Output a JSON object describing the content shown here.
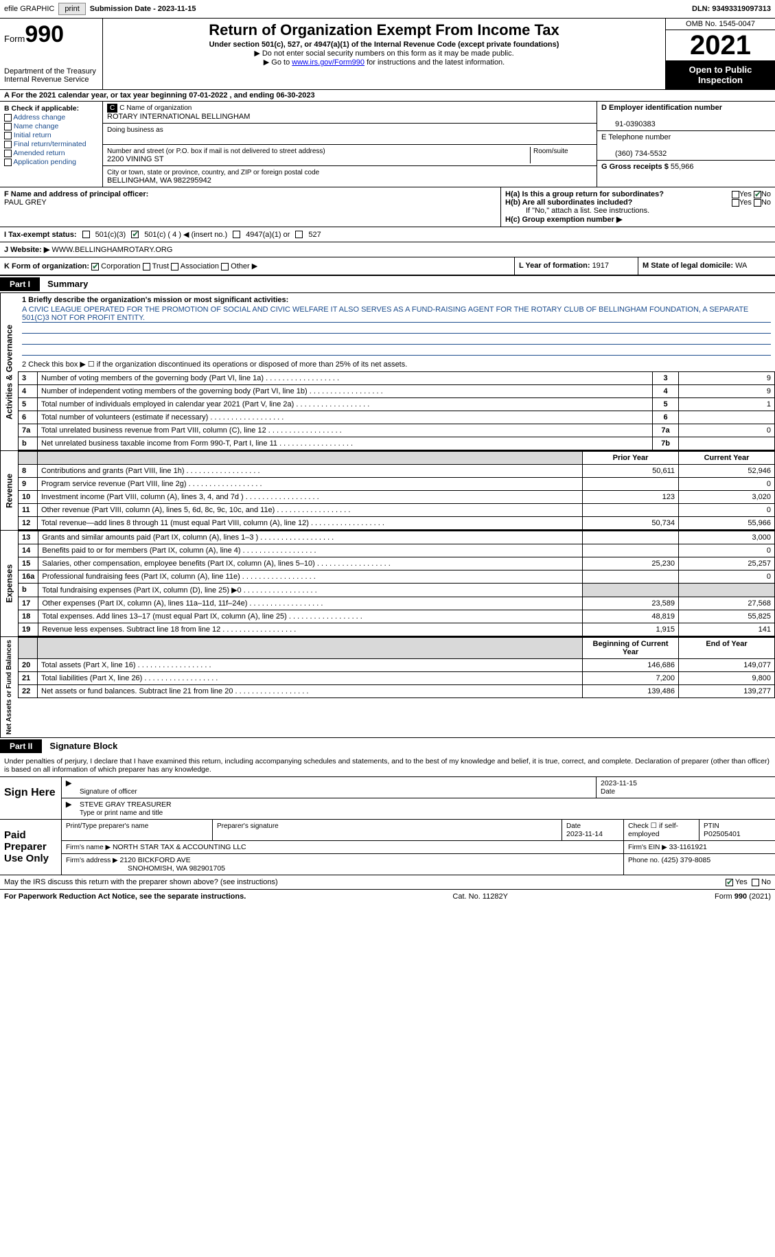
{
  "topbar": {
    "efile": "efile GRAPHIC",
    "print_btn": "print",
    "sub_label": "Submission Date - ",
    "sub_date": "2023-11-15",
    "dln_label": "DLN: ",
    "dln": "93493319097313"
  },
  "header": {
    "form_word": "Form",
    "form_num": "990",
    "dept1": "Department of the Treasury",
    "dept2": "Internal Revenue Service",
    "title": "Return of Organization Exempt From Income Tax",
    "sub": "Under section 501(c), 527, or 4947(a)(1) of the Internal Revenue Code (except private foundations)",
    "note1": "▶ Do not enter social security numbers on this form as it may be made public.",
    "note2_pre": "▶ Go to ",
    "note2_link": "www.irs.gov/Form990",
    "note2_post": " for instructions and the latest information.",
    "omb": "OMB No. 1545-0047",
    "year": "2021",
    "inspect": "Open to Public Inspection"
  },
  "row_a": {
    "text_pre": "A For the 2021 calendar year, or tax year beginning ",
    "begin": "07-01-2022",
    "mid": " , and ending ",
    "end": "06-30-2023"
  },
  "col_b": {
    "header": "B Check if applicable:",
    "opts": [
      "Address change",
      "Name change",
      "Initial return",
      "Final return/terminated",
      "Amended return",
      "Application pending"
    ]
  },
  "col_c": {
    "name_label": "C Name of organization",
    "name": "ROTARY INTERNATIONAL BELLINGHAM",
    "dba_label": "Doing business as",
    "addr_label": "Number and street (or P.O. box if mail is not delivered to street address)",
    "room_label": "Room/suite",
    "addr": "2200 VINING ST",
    "city_label": "City or town, state or province, country, and ZIP or foreign postal code",
    "city": "BELLINGHAM, WA  982295942"
  },
  "col_d": {
    "ein_label": "D Employer identification number",
    "ein": "91-0390383",
    "tel_label": "E Telephone number",
    "tel": "(360) 734-5532",
    "gross_label": "G Gross receipts $ ",
    "gross": "55,966"
  },
  "row_f": {
    "label": "F  Name and address of principal officer:",
    "name": "PAUL GREY"
  },
  "row_h": {
    "ha": "H(a)  Is this a group return for subordinates?",
    "hb": "H(b)  Are all subordinates included?",
    "hb_note": "If \"No,\" attach a list. See instructions.",
    "hc": "H(c)  Group exemption number ▶",
    "yes": "Yes",
    "no": "No"
  },
  "row_i": {
    "label": "I   Tax-exempt status:",
    "o1": "501(c)(3)",
    "o2_pre": "501(c) ( ",
    "o2_num": "4",
    "o2_post": " ) ◀ (insert no.)",
    "o3": "4947(a)(1) or",
    "o4": "527"
  },
  "row_j": {
    "label": "J   Website: ▶",
    "url": "WWW.BELLINGHAMROTARY.ORG"
  },
  "row_k": {
    "label": "K Form of organization:",
    "o1": "Corporation",
    "o2": "Trust",
    "o3": "Association",
    "o4": "Other ▶",
    "l_label": "L Year of formation: ",
    "l_val": "1917",
    "m_label": "M State of legal domicile: ",
    "m_val": "WA"
  },
  "part1": {
    "hdr": "Part I",
    "title": "Summary",
    "line1_label": "1   Briefly describe the organization's mission or most significant activities:",
    "mission": "A CIVIC LEAGUE OPERATED FOR THE PROMOTION OF SOCIAL AND CIVIC WELFARE IT ALSO SERVES AS A FUND-RAISING AGENT FOR THE ROTARY CLUB OF BELLINGHAM FOUNDATION, A SEPARATE 501(C)3 NOT FOR PROFIT ENTITY.",
    "line2": "2   Check this box ▶ ☐  if the organization discontinued its operations or disposed of more than 25% of its net assets.",
    "side_ag": "Activities & Governance",
    "side_rev": "Revenue",
    "side_exp": "Expenses",
    "side_net": "Net Assets or Fund Balances",
    "prior_hdr": "Prior Year",
    "curr_hdr": "Current Year",
    "boy_hdr": "Beginning of Current Year",
    "eoy_hdr": "End of Year",
    "rows_ag": [
      {
        "n": "3",
        "t": "Number of voting members of the governing body (Part VI, line 1a)",
        "b": "3",
        "v": "9"
      },
      {
        "n": "4",
        "t": "Number of independent voting members of the governing body (Part VI, line 1b)",
        "b": "4",
        "v": "9"
      },
      {
        "n": "5",
        "t": "Total number of individuals employed in calendar year 2021 (Part V, line 2a)",
        "b": "5",
        "v": "1"
      },
      {
        "n": "6",
        "t": "Total number of volunteers (estimate if necessary)",
        "b": "6",
        "v": ""
      },
      {
        "n": "7a",
        "t": "Total unrelated business revenue from Part VIII, column (C), line 12",
        "b": "7a",
        "v": "0"
      },
      {
        "n": "b",
        "t": "Net unrelated business taxable income from Form 990-T, Part I, line 11",
        "b": "7b",
        "v": ""
      }
    ],
    "rows_rev": [
      {
        "n": "8",
        "t": "Contributions and grants (Part VIII, line 1h)",
        "p": "50,611",
        "c": "52,946"
      },
      {
        "n": "9",
        "t": "Program service revenue (Part VIII, line 2g)",
        "p": "",
        "c": "0"
      },
      {
        "n": "10",
        "t": "Investment income (Part VIII, column (A), lines 3, 4, and 7d )",
        "p": "123",
        "c": "3,020"
      },
      {
        "n": "11",
        "t": "Other revenue (Part VIII, column (A), lines 5, 6d, 8c, 9c, 10c, and 11e)",
        "p": "",
        "c": "0"
      },
      {
        "n": "12",
        "t": "Total revenue—add lines 8 through 11 (must equal Part VIII, column (A), line 12)",
        "p": "50,734",
        "c": "55,966"
      }
    ],
    "rows_exp": [
      {
        "n": "13",
        "t": "Grants and similar amounts paid (Part IX, column (A), lines 1–3 )",
        "p": "",
        "c": "3,000"
      },
      {
        "n": "14",
        "t": "Benefits paid to or for members (Part IX, column (A), line 4)",
        "p": "",
        "c": "0"
      },
      {
        "n": "15",
        "t": "Salaries, other compensation, employee benefits (Part IX, column (A), lines 5–10)",
        "p": "25,230",
        "c": "25,257"
      },
      {
        "n": "16a",
        "t": "Professional fundraising fees (Part IX, column (A), line 11e)",
        "p": "",
        "c": "0"
      },
      {
        "n": "b",
        "t": "Total fundraising expenses (Part IX, column (D), line 25) ▶0",
        "p": "SHADE",
        "c": "SHADE"
      },
      {
        "n": "17",
        "t": "Other expenses (Part IX, column (A), lines 11a–11d, 11f–24e)",
        "p": "23,589",
        "c": "27,568"
      },
      {
        "n": "18",
        "t": "Total expenses. Add lines 13–17 (must equal Part IX, column (A), line 25)",
        "p": "48,819",
        "c": "55,825"
      },
      {
        "n": "19",
        "t": "Revenue less expenses. Subtract line 18 from line 12",
        "p": "1,915",
        "c": "141"
      }
    ],
    "rows_net": [
      {
        "n": "20",
        "t": "Total assets (Part X, line 16)",
        "p": "146,686",
        "c": "149,077"
      },
      {
        "n": "21",
        "t": "Total liabilities (Part X, line 26)",
        "p": "7,200",
        "c": "9,800"
      },
      {
        "n": "22",
        "t": "Net assets or fund balances. Subtract line 21 from line 20",
        "p": "139,486",
        "c": "139,277"
      }
    ]
  },
  "part2": {
    "hdr": "Part II",
    "title": "Signature Block",
    "decl": "Under penalties of perjury, I declare that I have examined this return, including accompanying schedules and statements, and to the best of my knowledge and belief, it is true, correct, and complete. Declaration of preparer (other than officer) is based on all information of which preparer has any knowledge.",
    "sign_here": "Sign Here",
    "sig_officer": "Signature of officer",
    "sig_date": "2023-11-15",
    "date_label": "Date",
    "officer_name": "STEVE GRAY  TREASURER",
    "officer_label": "Type or print name and title",
    "paid": "Paid Preparer Use Only",
    "prep_name_label": "Print/Type preparer's name",
    "prep_sig_label": "Preparer's signature",
    "prep_date_label": "Date",
    "prep_date": "2023-11-14",
    "check_self": "Check ☐ if self-employed",
    "ptin_label": "PTIN",
    "ptin": "P02505401",
    "firm_name_label": "Firm's name    ▶ ",
    "firm_name": "NORTH STAR TAX & ACCOUNTING LLC",
    "firm_ein_label": "Firm's EIN ▶ ",
    "firm_ein": "33-1161921",
    "firm_addr_label": "Firm's address ▶ ",
    "firm_addr1": "2120 BICKFORD AVE",
    "firm_addr2": "SNOHOMISH, WA  982901705",
    "phone_label": "Phone no. ",
    "phone": "(425) 379-8085",
    "discuss": "May the IRS discuss this return with the preparer shown above? (see instructions)",
    "yes": "Yes",
    "no": "No"
  },
  "footer": {
    "left": "For Paperwork Reduction Act Notice, see the separate instructions.",
    "mid": "Cat. No. 11282Y",
    "right": "Form 990 (2021)"
  }
}
